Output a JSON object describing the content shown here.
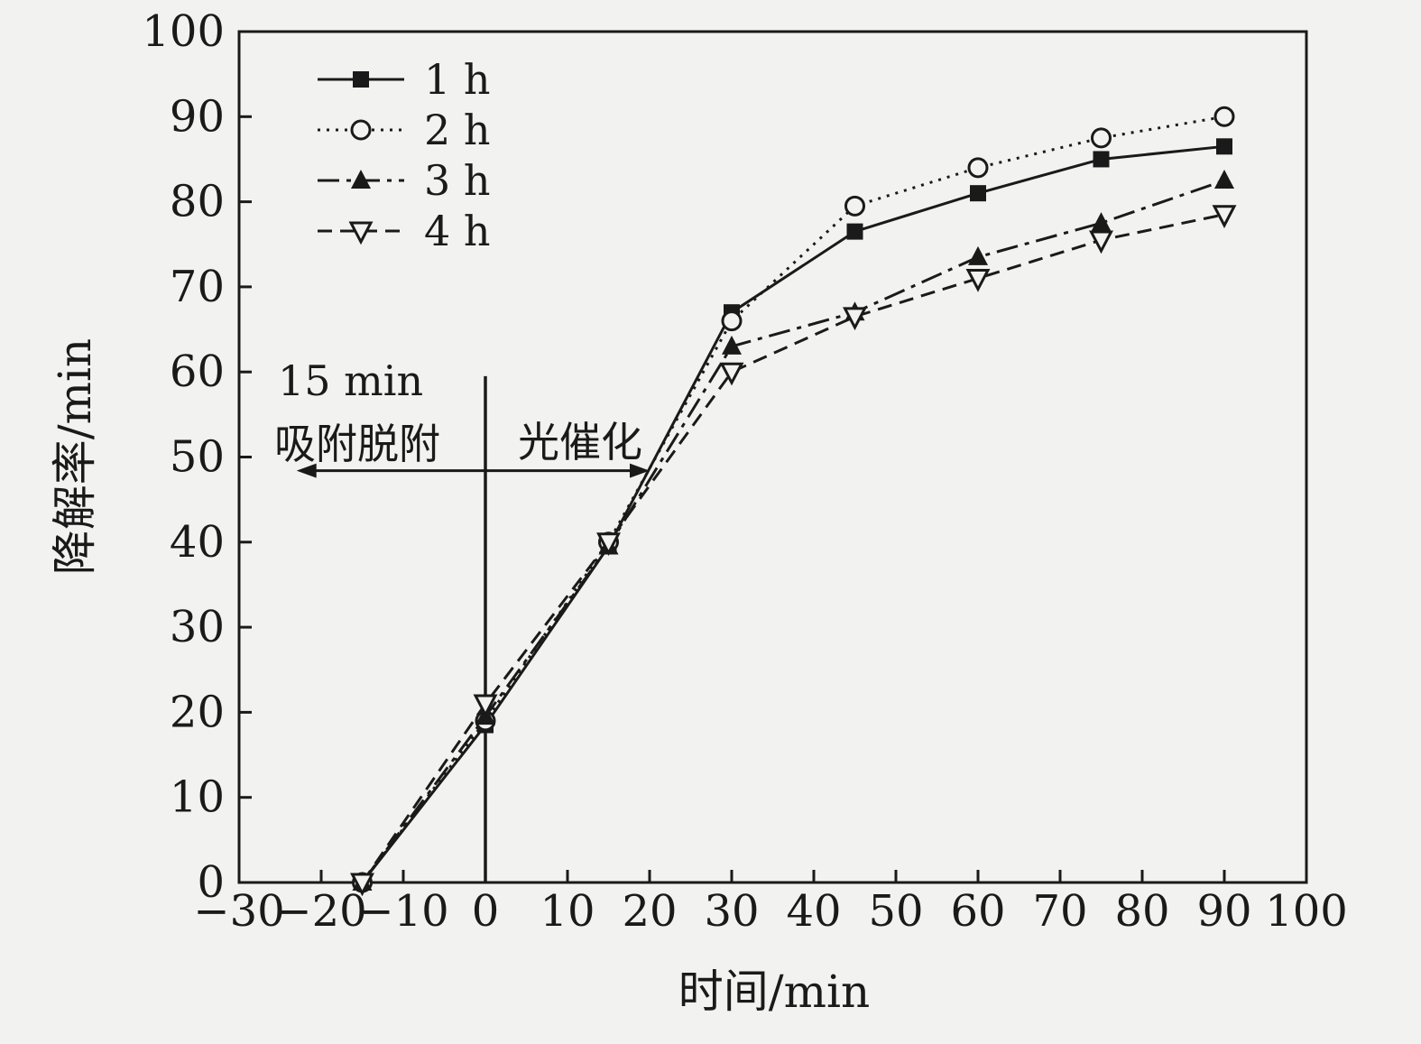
{
  "chart_data": {
    "type": "line",
    "title": "",
    "xlabel": "时间/min",
    "ylabel": "降解率/min",
    "xlim": [
      -30,
      100
    ],
    "ylim": [
      0,
      100
    ],
    "xtick_values": [
      -30,
      -20,
      -10,
      0,
      10,
      20,
      30,
      40,
      50,
      60,
      70,
      80,
      90,
      100
    ],
    "xtick_labels": [
      "−30",
      "−20",
      "−10",
      "0",
      "10",
      "20",
      "30",
      "40",
      "50",
      "60",
      "70",
      "80",
      "90",
      "100"
    ],
    "ytick_values": [
      0,
      10,
      20,
      30,
      40,
      50,
      60,
      70,
      80,
      90,
      100
    ],
    "ytick_labels": [
      "0",
      "10",
      "20",
      "30",
      "40",
      "50",
      "60",
      "70",
      "80",
      "90",
      "100"
    ],
    "grid": false,
    "legend_position": "top-left-inside",
    "x": [
      -15,
      0,
      15,
      30,
      45,
      60,
      75,
      90
    ],
    "series": [
      {
        "name": "1 h",
        "marker": "square-filled",
        "line_style": "solid",
        "values": [
          0,
          18.5,
          39.5,
          67,
          76.5,
          81,
          85,
          86.5
        ]
      },
      {
        "name": "2 h",
        "marker": "circle-open",
        "line_style": "dotted",
        "values": [
          0,
          19,
          40,
          66,
          79.5,
          84,
          87.5,
          90
        ]
      },
      {
        "name": "3 h",
        "marker": "triangle-filled-up",
        "line_style": "dashdot",
        "values": [
          0,
          19.5,
          39.5,
          63,
          67,
          73.5,
          77.5,
          82.5
        ]
      },
      {
        "name": "4 h",
        "marker": "triangle-open-down",
        "line_style": "dashed",
        "values": [
          0,
          21,
          40,
          60,
          66.5,
          71,
          75.5,
          78.5
        ]
      }
    ],
    "annotations": {
      "label_15min": "15 min",
      "label_adsorption": "吸附脱附",
      "label_photocatalysis": "光催化",
      "divider": {
        "x": 0,
        "y_top": 59.5,
        "y_bottom": 0
      },
      "arrow": {
        "y": 48.4,
        "x1": -23,
        "x2": 20
      }
    },
    "colors": {
      "ink": "#1a1a1a",
      "background": "#f2f2f1"
    }
  }
}
